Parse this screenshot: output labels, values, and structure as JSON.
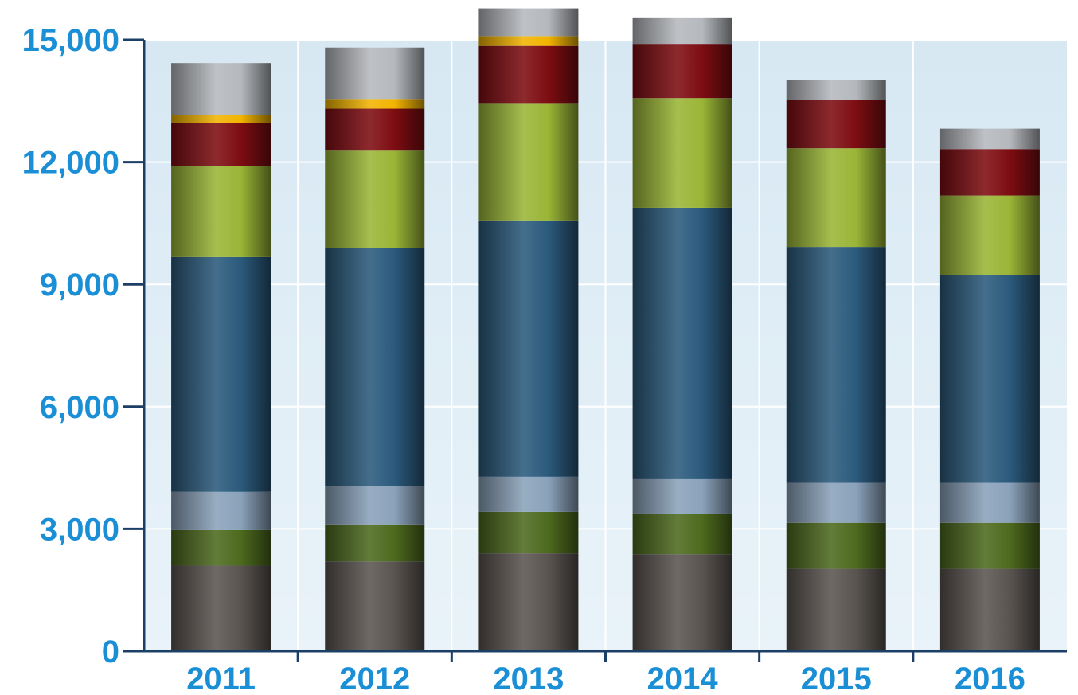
{
  "chart_data": {
    "type": "bar",
    "stacked": true,
    "categories": [
      "2011",
      "2012",
      "2013",
      "2014",
      "2015",
      "2016"
    ],
    "series": [
      {
        "color": "#5a5450",
        "values": [
          2100,
          2200,
          2400,
          2380,
          2020,
          2020
        ]
      },
      {
        "color": "#4d6a1e",
        "values": [
          870,
          910,
          1020,
          980,
          1130,
          1130
        ]
      },
      {
        "color": "#8aa2ba",
        "values": [
          940,
          950,
          860,
          860,
          980,
          980
        ]
      },
      {
        "color": "#2b5a7c",
        "values": [
          5760,
          5840,
          6290,
          6660,
          5790,
          5090
        ]
      },
      {
        "color": "#9ab536",
        "values": [
          2240,
          2380,
          2860,
          2690,
          2420,
          1960
        ]
      },
      {
        "color": "#7d0d12",
        "values": [
          1040,
          1030,
          1420,
          1330,
          1180,
          1140
        ]
      },
      {
        "color": "#f2b400",
        "values": [
          210,
          240,
          240,
          0,
          0,
          0
        ]
      },
      {
        "color": "#b5b8bd",
        "values": [
          1270,
          1260,
          680,
          650,
          500,
          500
        ]
      }
    ],
    "yticks": [
      "0",
      "3,000",
      "6,000",
      "9,000",
      "12,000",
      "15,000"
    ],
    "ytick_values": [
      0,
      3000,
      6000,
      9000,
      12000,
      15000
    ],
    "ylim": [
      0,
      15000
    ],
    "grid": true,
    "colors": {
      "label": "#1a8fd6",
      "axis": "#1b3f66",
      "plot_bg_top": "#d7e8f3",
      "plot_bg_bottom": "#e9f3f9",
      "grid": "#ffffff"
    }
  }
}
